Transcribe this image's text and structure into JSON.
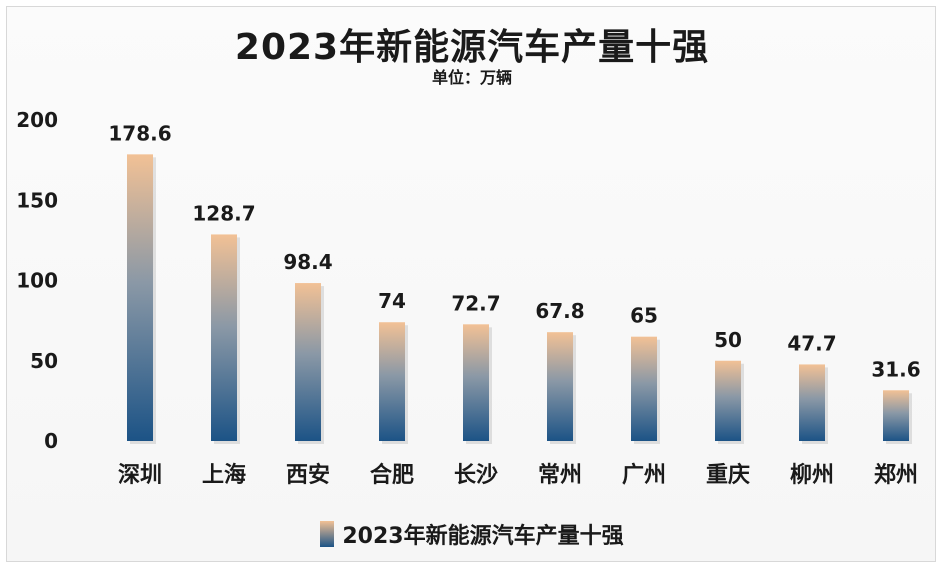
{
  "chart_data": {
    "type": "bar",
    "title": "2023年新能源汽车产量十强",
    "subtitle": "单位：万辆",
    "categories": [
      "深圳",
      "上海",
      "西安",
      "合肥",
      "长沙",
      "常州",
      "广州",
      "重庆",
      "柳州",
      "郑州"
    ],
    "series": [
      {
        "name": "2023年新能源汽车产量十强",
        "values": [
          178.6,
          128.7,
          98.4,
          74,
          72.7,
          67.8,
          65,
          50,
          47.7,
          31.6
        ],
        "data_labels": [
          "178.6",
          "128.7",
          "98.4",
          "74",
          "72.7",
          "67.8",
          "65",
          "50",
          "47.7",
          "31.6"
        ]
      }
    ],
    "ylim": [
      0,
      200
    ],
    "y_ticks": [
      "0",
      "50",
      "100",
      "150",
      "200"
    ],
    "grid": false,
    "legend_position": "bottom",
    "colors": {
      "bar_top": "#f2c195",
      "bar_bottom": "#1c5386"
    }
  }
}
